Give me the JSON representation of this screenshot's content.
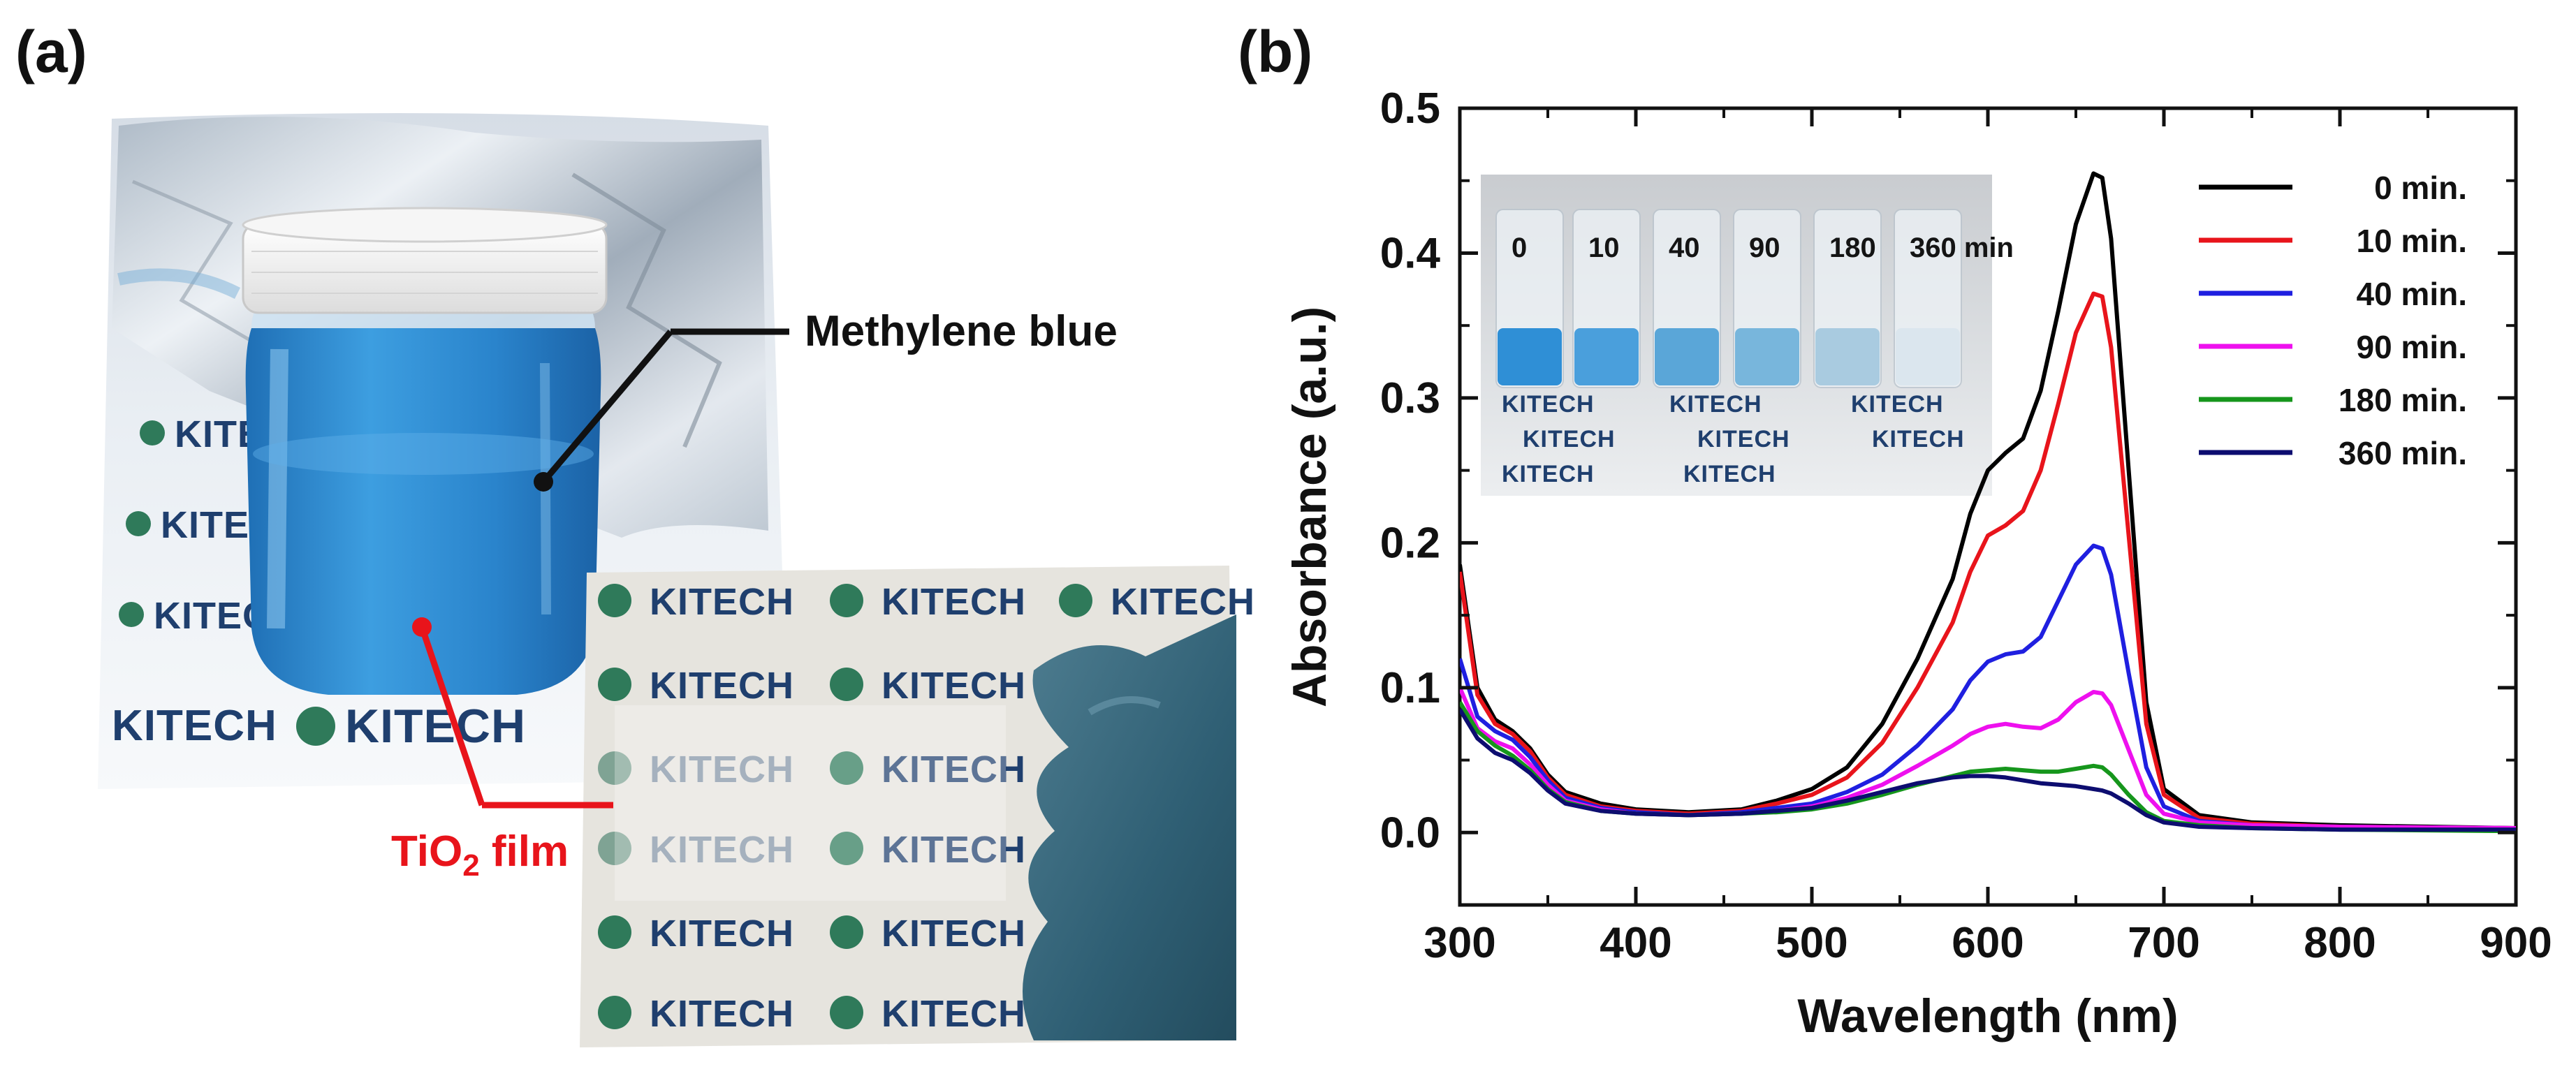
{
  "panel_a": {
    "label": "(a)",
    "jar_annotation": "Methylene blue",
    "film_annotation_main": "TiO",
    "film_annotation_sub": "2",
    "film_annotation_tail": " film",
    "watermark_text": "KITECH",
    "colors": {
      "solution": "#2f86c8",
      "film_label": "#e8141b",
      "pointer": "#111111"
    }
  },
  "panel_b": {
    "label": "(b)",
    "inset_labels": [
      "0",
      "10",
      "40",
      "90",
      "180",
      "360 min"
    ],
    "inset_watermark": "KITECH"
  },
  "chart_data": {
    "type": "line",
    "xlabel": "Wavelength (nm)",
    "ylabel": "Absorbance (a.u.)",
    "xlim": [
      300,
      900
    ],
    "ylim": [
      -0.05,
      0.5
    ],
    "xticks": [
      300,
      400,
      500,
      600,
      700,
      800,
      900
    ],
    "yticks": [
      0.0,
      0.1,
      0.2,
      0.3,
      0.4,
      0.5
    ],
    "ytick_labels": [
      "0.0",
      "0.1",
      "0.2",
      "0.3",
      "0.4",
      "0.5"
    ],
    "grid": false,
    "legend_position": "top-right",
    "series": [
      {
        "name": "0 min.",
        "color": "#000000",
        "x": [
          300,
          310,
          320,
          330,
          340,
          350,
          360,
          380,
          400,
          430,
          460,
          480,
          500,
          520,
          540,
          560,
          580,
          590,
          600,
          610,
          620,
          630,
          640,
          650,
          660,
          665,
          670,
          680,
          690,
          700,
          720,
          750,
          800,
          900
        ],
        "y": [
          0.185,
          0.1,
          0.078,
          0.07,
          0.058,
          0.04,
          0.028,
          0.02,
          0.016,
          0.014,
          0.016,
          0.022,
          0.03,
          0.045,
          0.075,
          0.12,
          0.175,
          0.22,
          0.25,
          0.262,
          0.272,
          0.305,
          0.36,
          0.42,
          0.455,
          0.452,
          0.41,
          0.25,
          0.09,
          0.03,
          0.012,
          0.007,
          0.005,
          0.003
        ]
      },
      {
        "name": "10 min.",
        "color": "#e8141b",
        "x": [
          300,
          310,
          320,
          330,
          340,
          350,
          360,
          380,
          400,
          430,
          460,
          480,
          500,
          520,
          540,
          560,
          580,
          590,
          600,
          610,
          620,
          630,
          640,
          650,
          660,
          665,
          670,
          680,
          690,
          700,
          720,
          750,
          800,
          900
        ],
        "y": [
          0.18,
          0.095,
          0.075,
          0.068,
          0.056,
          0.038,
          0.026,
          0.018,
          0.015,
          0.013,
          0.015,
          0.02,
          0.026,
          0.038,
          0.062,
          0.1,
          0.145,
          0.18,
          0.205,
          0.212,
          0.222,
          0.25,
          0.296,
          0.345,
          0.372,
          0.37,
          0.335,
          0.205,
          0.075,
          0.026,
          0.01,
          0.006,
          0.004,
          0.003
        ]
      },
      {
        "name": "40 min.",
        "color": "#1f1fe0",
        "x": [
          300,
          310,
          320,
          330,
          340,
          350,
          360,
          380,
          400,
          430,
          460,
          480,
          500,
          520,
          540,
          560,
          580,
          590,
          600,
          610,
          620,
          630,
          640,
          650,
          660,
          665,
          670,
          680,
          690,
          700,
          720,
          750,
          800,
          900
        ],
        "y": [
          0.12,
          0.08,
          0.07,
          0.064,
          0.052,
          0.036,
          0.024,
          0.017,
          0.014,
          0.012,
          0.014,
          0.017,
          0.02,
          0.028,
          0.04,
          0.06,
          0.085,
          0.105,
          0.118,
          0.123,
          0.125,
          0.135,
          0.16,
          0.185,
          0.198,
          0.196,
          0.178,
          0.11,
          0.045,
          0.018,
          0.008,
          0.005,
          0.004,
          0.003
        ]
      },
      {
        "name": "90 min.",
        "color": "#ee10ee",
        "x": [
          300,
          310,
          320,
          330,
          340,
          350,
          360,
          380,
          400,
          430,
          460,
          480,
          500,
          520,
          540,
          560,
          580,
          590,
          600,
          610,
          620,
          630,
          640,
          650,
          660,
          665,
          670,
          680,
          690,
          700,
          720,
          750,
          800,
          900
        ],
        "y": [
          0.1,
          0.072,
          0.063,
          0.058,
          0.047,
          0.033,
          0.022,
          0.016,
          0.013,
          0.012,
          0.013,
          0.015,
          0.018,
          0.024,
          0.033,
          0.046,
          0.06,
          0.068,
          0.073,
          0.075,
          0.073,
          0.072,
          0.078,
          0.09,
          0.097,
          0.096,
          0.088,
          0.057,
          0.026,
          0.013,
          0.007,
          0.005,
          0.004,
          0.003
        ]
      },
      {
        "name": "180 min.",
        "color": "#16961c",
        "x": [
          300,
          310,
          320,
          330,
          340,
          350,
          360,
          380,
          400,
          430,
          460,
          480,
          500,
          520,
          540,
          560,
          580,
          590,
          600,
          610,
          620,
          630,
          640,
          650,
          660,
          665,
          670,
          680,
          690,
          700,
          720,
          750,
          800,
          900
        ],
        "y": [
          0.09,
          0.07,
          0.06,
          0.053,
          0.043,
          0.03,
          0.021,
          0.015,
          0.013,
          0.012,
          0.013,
          0.014,
          0.016,
          0.02,
          0.026,
          0.033,
          0.039,
          0.042,
          0.043,
          0.044,
          0.043,
          0.042,
          0.042,
          0.044,
          0.046,
          0.045,
          0.04,
          0.026,
          0.014,
          0.008,
          0.005,
          0.003,
          0.002,
          0.001
        ]
      },
      {
        "name": "360 min.",
        "color": "#0d0d70",
        "x": [
          300,
          310,
          320,
          330,
          340,
          350,
          360,
          380,
          400,
          430,
          460,
          480,
          500,
          520,
          540,
          560,
          580,
          590,
          600,
          610,
          620,
          630,
          640,
          650,
          660,
          665,
          670,
          680,
          690,
          700,
          720,
          750,
          800,
          900
        ],
        "y": [
          0.085,
          0.065,
          0.055,
          0.05,
          0.041,
          0.029,
          0.02,
          0.015,
          0.013,
          0.012,
          0.013,
          0.015,
          0.017,
          0.022,
          0.028,
          0.034,
          0.038,
          0.039,
          0.039,
          0.038,
          0.036,
          0.034,
          0.033,
          0.032,
          0.03,
          0.029,
          0.027,
          0.02,
          0.012,
          0.007,
          0.004,
          0.003,
          0.002,
          0.002
        ]
      }
    ]
  }
}
